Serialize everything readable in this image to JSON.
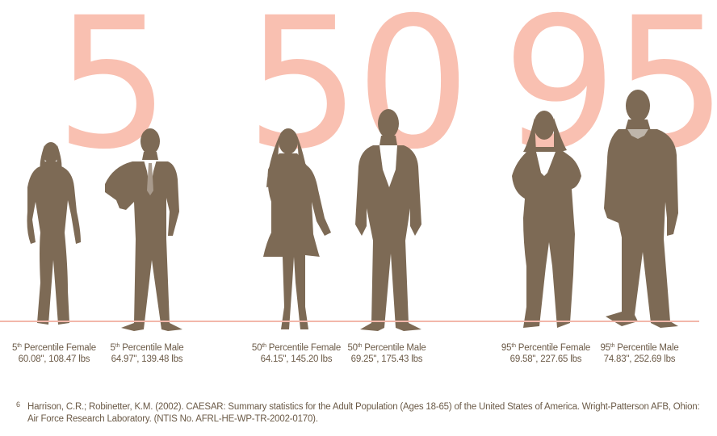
{
  "numbers": [
    "5",
    "50",
    "95"
  ],
  "figures": [
    {
      "name": "5th-percentile-female",
      "ord": "5",
      "suffix": "th",
      "title": "Percentile Female",
      "stats": "60.08\", 108.47 lbs"
    },
    {
      "name": "5th-percentile-male",
      "ord": "5",
      "suffix": "th",
      "title": "Percentile Male",
      "stats": "64.97\", 139.48 lbs"
    },
    {
      "name": "50th-percentile-female",
      "ord": "50",
      "suffix": "th",
      "title": "Percentile Female",
      "stats": "64.15\", 145.20 lbs"
    },
    {
      "name": "50th-percentile-male",
      "ord": "50",
      "suffix": "th",
      "title": "Percentile Male",
      "stats": "69.25\", 175.43 lbs"
    },
    {
      "name": "95th-percentile-female",
      "ord": "95",
      "suffix": "th",
      "title": "Percentile Female",
      "stats": "69.58\", 227.65 lbs"
    },
    {
      "name": "95th-percentile-male",
      "ord": "95",
      "suffix": "th",
      "title": "Percentile Male",
      "stats": "74.83\", 252.69 lbs"
    }
  ],
  "footnote": {
    "mark": "6",
    "text": "Harrison, C.R.; Robinetter, K.M. (2002). CAESAR: Summary statistics for the Adult Population (Ages 18-65) of the United States of America. Wright-Patterson AFB, Ohion: Air Force Research Laboratory. (NTIS No. AFRL-HE-WP-TR-2002-0170)."
  },
  "colors": {
    "silhouette": "#7d6a55",
    "numeral": "#f9c0b1",
    "baseline": "#f2b7aa",
    "text": "#6b5a47"
  }
}
